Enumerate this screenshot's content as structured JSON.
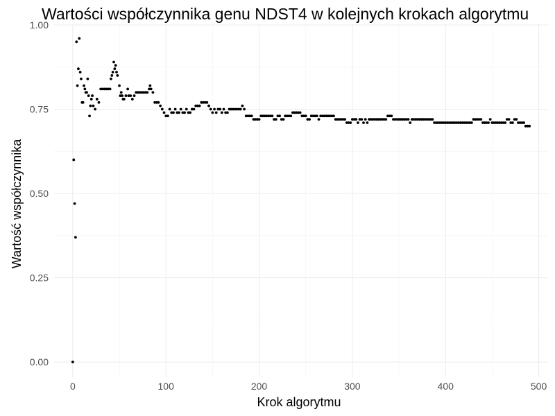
{
  "chart_data": {
    "type": "scatter",
    "title": "Wartości współczynnika genu NDST4 w kolejnych krokach algorytmu",
    "xlabel": "Krok algorytmu",
    "ylabel": "Wartość współczynnika",
    "xlim": [
      -20,
      510
    ],
    "ylim": [
      -0.045,
      1.0
    ],
    "x_ticks": [
      0,
      100,
      200,
      300,
      400,
      500
    ],
    "x_tick_labels": [
      "0",
      "100",
      "200",
      "300",
      "400",
      "500"
    ],
    "y_ticks": [
      0.0,
      0.25,
      0.5,
      0.75,
      1.0
    ],
    "y_tick_labels": [
      "0.00",
      "0.25",
      "0.50",
      "0.75",
      "1.00"
    ],
    "grid": true,
    "point_color": "#000000",
    "series": [
      {
        "points": [
          [
            0,
            0.0
          ],
          [
            1,
            0.6
          ],
          [
            2,
            0.47
          ],
          [
            3,
            0.37
          ],
          [
            4,
            0.95
          ],
          [
            5,
            0.82
          ],
          [
            6,
            0.87
          ],
          [
            7,
            0.96
          ],
          [
            8,
            0.86
          ],
          [
            9,
            0.84
          ],
          [
            10,
            0.77
          ],
          [
            11,
            0.77
          ],
          [
            12,
            0.82
          ],
          [
            13,
            0.81
          ],
          [
            14,
            0.8
          ],
          [
            15,
            0.8
          ],
          [
            16,
            0.84
          ],
          [
            17,
            0.79
          ],
          [
            18,
            0.73
          ],
          [
            19,
            0.76
          ],
          [
            20,
            0.78
          ],
          [
            21,
            0.79
          ],
          [
            22,
            0.76
          ],
          [
            24,
            0.75
          ],
          [
            26,
            0.78
          ],
          [
            28,
            0.77
          ],
          [
            30,
            0.81
          ],
          [
            32,
            0.81
          ],
          [
            34,
            0.81
          ],
          [
            36,
            0.81
          ],
          [
            38,
            0.81
          ],
          [
            40,
            0.81
          ],
          [
            41,
            0.84
          ],
          [
            42,
            0.85
          ],
          [
            43,
            0.86
          ],
          [
            44,
            0.89
          ],
          [
            45,
            0.87
          ],
          [
            46,
            0.88
          ],
          [
            47,
            0.86
          ],
          [
            48,
            0.85
          ],
          [
            50,
            0.82
          ],
          [
            51,
            0.79
          ],
          [
            52,
            0.8
          ],
          [
            53,
            0.79
          ],
          [
            54,
            0.78
          ],
          [
            55,
            0.78
          ],
          [
            57,
            0.79
          ],
          [
            59,
            0.81
          ],
          [
            60,
            0.79
          ],
          [
            62,
            0.79
          ],
          [
            64,
            0.78
          ],
          [
            66,
            0.79
          ],
          [
            68,
            0.8
          ],
          [
            70,
            0.8
          ],
          [
            72,
            0.8
          ],
          [
            74,
            0.8
          ],
          [
            76,
            0.8
          ],
          [
            78,
            0.8
          ],
          [
            80,
            0.8
          ],
          [
            82,
            0.81
          ],
          [
            83,
            0.82
          ],
          [
            84,
            0.81
          ],
          [
            86,
            0.8
          ],
          [
            88,
            0.77
          ],
          [
            90,
            0.77
          ],
          [
            92,
            0.77
          ],
          [
            94,
            0.76
          ],
          [
            96,
            0.75
          ],
          [
            98,
            0.74
          ],
          [
            100,
            0.73
          ],
          [
            102,
            0.73
          ],
          [
            104,
            0.75
          ],
          [
            106,
            0.74
          ],
          [
            108,
            0.74
          ],
          [
            110,
            0.75
          ],
          [
            112,
            0.74
          ],
          [
            114,
            0.74
          ],
          [
            116,
            0.75
          ],
          [
            118,
            0.74
          ],
          [
            120,
            0.74
          ],
          [
            122,
            0.75
          ],
          [
            124,
            0.74
          ],
          [
            126,
            0.74
          ],
          [
            128,
            0.75
          ],
          [
            130,
            0.75
          ],
          [
            132,
            0.76
          ],
          [
            134,
            0.76
          ],
          [
            136,
            0.76
          ],
          [
            138,
            0.77
          ],
          [
            140,
            0.77
          ],
          [
            142,
            0.77
          ],
          [
            144,
            0.77
          ],
          [
            146,
            0.76
          ],
          [
            148,
            0.75
          ],
          [
            150,
            0.74
          ],
          [
            152,
            0.75
          ],
          [
            154,
            0.74
          ],
          [
            156,
            0.75
          ],
          [
            158,
            0.75
          ],
          [
            160,
            0.74
          ],
          [
            162,
            0.75
          ],
          [
            164,
            0.74
          ],
          [
            166,
            0.74
          ],
          [
            168,
            0.75
          ],
          [
            170,
            0.75
          ],
          [
            172,
            0.75
          ],
          [
            174,
            0.75
          ],
          [
            176,
            0.75
          ],
          [
            178,
            0.75
          ],
          [
            180,
            0.75
          ],
          [
            182,
            0.76
          ],
          [
            184,
            0.75
          ],
          [
            186,
            0.73
          ],
          [
            188,
            0.73
          ],
          [
            190,
            0.73
          ],
          [
            192,
            0.73
          ],
          [
            194,
            0.72
          ],
          [
            196,
            0.72
          ],
          [
            198,
            0.72
          ],
          [
            200,
            0.72
          ],
          [
            202,
            0.73
          ],
          [
            204,
            0.73
          ],
          [
            206,
            0.73
          ],
          [
            208,
            0.73
          ],
          [
            210,
            0.73
          ],
          [
            212,
            0.73
          ],
          [
            214,
            0.73
          ],
          [
            216,
            0.72
          ],
          [
            218,
            0.72
          ],
          [
            220,
            0.73
          ],
          [
            222,
            0.73
          ],
          [
            224,
            0.72
          ],
          [
            226,
            0.72
          ],
          [
            228,
            0.73
          ],
          [
            230,
            0.73
          ],
          [
            232,
            0.73
          ],
          [
            234,
            0.73
          ],
          [
            236,
            0.74
          ],
          [
            238,
            0.74
          ],
          [
            240,
            0.74
          ],
          [
            242,
            0.74
          ],
          [
            244,
            0.74
          ],
          [
            246,
            0.73
          ],
          [
            248,
            0.73
          ],
          [
            250,
            0.73
          ],
          [
            252,
            0.72
          ],
          [
            254,
            0.72
          ],
          [
            256,
            0.73
          ],
          [
            258,
            0.73
          ],
          [
            260,
            0.73
          ],
          [
            262,
            0.73
          ],
          [
            264,
            0.72
          ],
          [
            266,
            0.73
          ],
          [
            268,
            0.73
          ],
          [
            270,
            0.73
          ],
          [
            272,
            0.73
          ],
          [
            274,
            0.73
          ],
          [
            276,
            0.73
          ],
          [
            278,
            0.73
          ],
          [
            280,
            0.73
          ],
          [
            282,
            0.72
          ],
          [
            284,
            0.72
          ],
          [
            286,
            0.72
          ],
          [
            288,
            0.72
          ],
          [
            290,
            0.72
          ],
          [
            292,
            0.72
          ],
          [
            294,
            0.71
          ],
          [
            296,
            0.71
          ],
          [
            298,
            0.71
          ],
          [
            300,
            0.72
          ],
          [
            302,
            0.72
          ],
          [
            304,
            0.72
          ],
          [
            306,
            0.71
          ],
          [
            308,
            0.72
          ],
          [
            310,
            0.72
          ],
          [
            312,
            0.71
          ],
          [
            314,
            0.72
          ],
          [
            316,
            0.71
          ],
          [
            318,
            0.72
          ],
          [
            320,
            0.72
          ],
          [
            322,
            0.72
          ],
          [
            324,
            0.72
          ],
          [
            326,
            0.72
          ],
          [
            328,
            0.72
          ],
          [
            330,
            0.72
          ],
          [
            332,
            0.72
          ],
          [
            334,
            0.72
          ],
          [
            336,
            0.72
          ],
          [
            338,
            0.73
          ],
          [
            340,
            0.73
          ],
          [
            342,
            0.73
          ],
          [
            344,
            0.72
          ],
          [
            346,
            0.72
          ],
          [
            348,
            0.72
          ],
          [
            350,
            0.72
          ],
          [
            352,
            0.72
          ],
          [
            354,
            0.72
          ],
          [
            356,
            0.72
          ],
          [
            358,
            0.72
          ],
          [
            360,
            0.72
          ],
          [
            362,
            0.71
          ],
          [
            364,
            0.72
          ],
          [
            366,
            0.72
          ],
          [
            368,
            0.72
          ],
          [
            370,
            0.72
          ],
          [
            372,
            0.72
          ],
          [
            374,
            0.72
          ],
          [
            376,
            0.72
          ],
          [
            378,
            0.72
          ],
          [
            380,
            0.72
          ],
          [
            382,
            0.72
          ],
          [
            384,
            0.72
          ],
          [
            386,
            0.72
          ],
          [
            388,
            0.71
          ],
          [
            390,
            0.71
          ],
          [
            392,
            0.71
          ],
          [
            394,
            0.71
          ],
          [
            396,
            0.71
          ],
          [
            398,
            0.71
          ],
          [
            400,
            0.71
          ],
          [
            402,
            0.71
          ],
          [
            404,
            0.71
          ],
          [
            406,
            0.71
          ],
          [
            408,
            0.71
          ],
          [
            410,
            0.71
          ],
          [
            412,
            0.71
          ],
          [
            414,
            0.71
          ],
          [
            416,
            0.71
          ],
          [
            418,
            0.71
          ],
          [
            420,
            0.71
          ],
          [
            422,
            0.71
          ],
          [
            424,
            0.71
          ],
          [
            426,
            0.71
          ],
          [
            428,
            0.71
          ],
          [
            430,
            0.72
          ],
          [
            432,
            0.72
          ],
          [
            434,
            0.72
          ],
          [
            436,
            0.72
          ],
          [
            438,
            0.72
          ],
          [
            440,
            0.71
          ],
          [
            442,
            0.71
          ],
          [
            444,
            0.71
          ],
          [
            446,
            0.71
          ],
          [
            448,
            0.72
          ],
          [
            450,
            0.71
          ],
          [
            452,
            0.71
          ],
          [
            454,
            0.71
          ],
          [
            456,
            0.71
          ],
          [
            458,
            0.71
          ],
          [
            460,
            0.71
          ],
          [
            462,
            0.71
          ],
          [
            464,
            0.71
          ],
          [
            466,
            0.72
          ],
          [
            468,
            0.72
          ],
          [
            470,
            0.71
          ],
          [
            472,
            0.71
          ],
          [
            474,
            0.72
          ],
          [
            476,
            0.72
          ],
          [
            478,
            0.71
          ],
          [
            480,
            0.71
          ],
          [
            482,
            0.71
          ],
          [
            484,
            0.71
          ],
          [
            486,
            0.7
          ],
          [
            488,
            0.7
          ],
          [
            490,
            0.7
          ]
        ]
      }
    ]
  }
}
